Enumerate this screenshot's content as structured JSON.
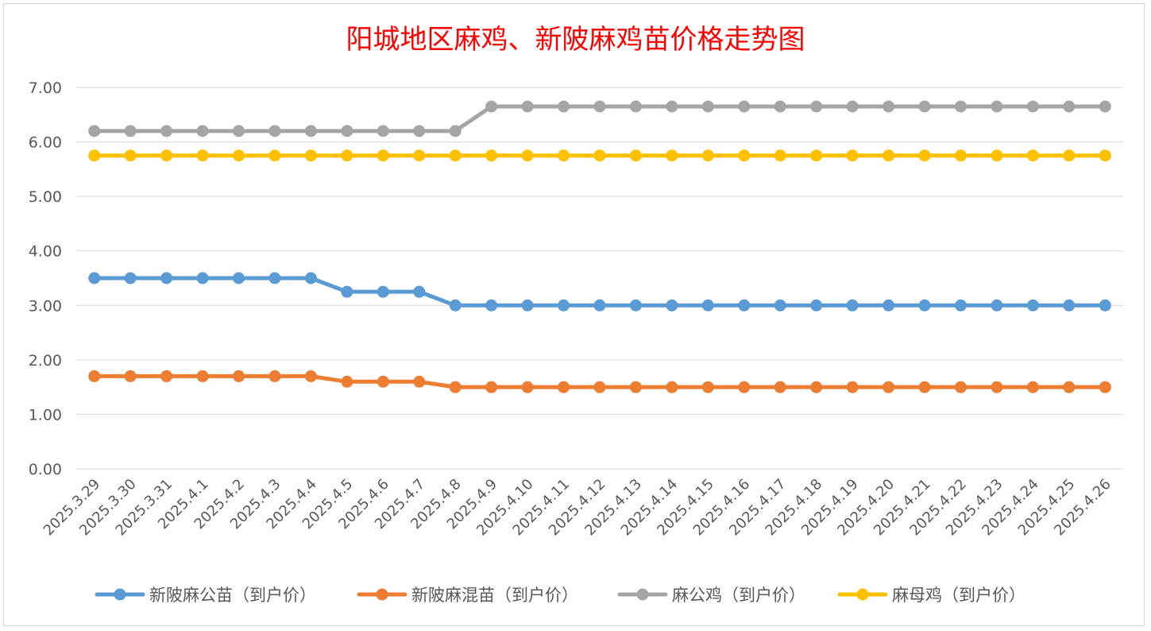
{
  "chart_data": {
    "type": "line",
    "title": "阳城地区麻鸡、新陂麻鸡苗价格走势图",
    "xlabel": "",
    "ylabel": "",
    "ylim": [
      0,
      7
    ],
    "yticks": [
      "0.00",
      "1.00",
      "2.00",
      "3.00",
      "4.00",
      "5.00",
      "6.00",
      "7.00"
    ],
    "grid": true,
    "legend_position": "bottom",
    "categories": [
      "2025.3.29",
      "2025.3.30",
      "2025.3.31",
      "2025.4.1",
      "2025.4.2",
      "2025.4.3",
      "2025.4.4",
      "2025.4.5",
      "2025.4.6",
      "2025.4.7",
      "2025.4.8",
      "2025.4.9",
      "2025.4.10",
      "2025.4.11",
      "2025.4.12",
      "2025.4.13",
      "2025.4.14",
      "2025.4.15",
      "2025.4.16",
      "2025.4.17",
      "2025.4.18",
      "2025.4.19",
      "2025.4.20",
      "2025.4.21",
      "2025.4.22",
      "2025.4.23",
      "2025.4.24",
      "2025.4.25",
      "2025.4.26"
    ],
    "series": [
      {
        "name": "新陂麻公苗（到户价）",
        "color": "#5b9bd5",
        "values": [
          3.5,
          3.5,
          3.5,
          3.5,
          3.5,
          3.5,
          3.5,
          3.25,
          3.25,
          3.25,
          3.0,
          3.0,
          3.0,
          3.0,
          3.0,
          3.0,
          3.0,
          3.0,
          3.0,
          3.0,
          3.0,
          3.0,
          3.0,
          3.0,
          3.0,
          3.0,
          3.0,
          3.0,
          3.0
        ]
      },
      {
        "name": "新陂麻混苗（到户价）",
        "color": "#ed7d31",
        "values": [
          1.7,
          1.7,
          1.7,
          1.7,
          1.7,
          1.7,
          1.7,
          1.6,
          1.6,
          1.6,
          1.5,
          1.5,
          1.5,
          1.5,
          1.5,
          1.5,
          1.5,
          1.5,
          1.5,
          1.5,
          1.5,
          1.5,
          1.5,
          1.5,
          1.5,
          1.5,
          1.5,
          1.5,
          1.5
        ]
      },
      {
        "name": "麻公鸡（到户价）",
        "color": "#a5a5a5",
        "values": [
          6.2,
          6.2,
          6.2,
          6.2,
          6.2,
          6.2,
          6.2,
          6.2,
          6.2,
          6.2,
          6.2,
          6.65,
          6.65,
          6.65,
          6.65,
          6.65,
          6.65,
          6.65,
          6.65,
          6.65,
          6.65,
          6.65,
          6.65,
          6.65,
          6.65,
          6.65,
          6.65,
          6.65,
          6.65
        ]
      },
      {
        "name": "麻母鸡（到户价）",
        "color": "#ffc000",
        "values": [
          5.75,
          5.75,
          5.75,
          5.75,
          5.75,
          5.75,
          5.75,
          5.75,
          5.75,
          5.75,
          5.75,
          5.75,
          5.75,
          5.75,
          5.75,
          5.75,
          5.75,
          5.75,
          5.75,
          5.75,
          5.75,
          5.75,
          5.75,
          5.75,
          5.75,
          5.75,
          5.75,
          5.75,
          5.75
        ]
      }
    ]
  }
}
